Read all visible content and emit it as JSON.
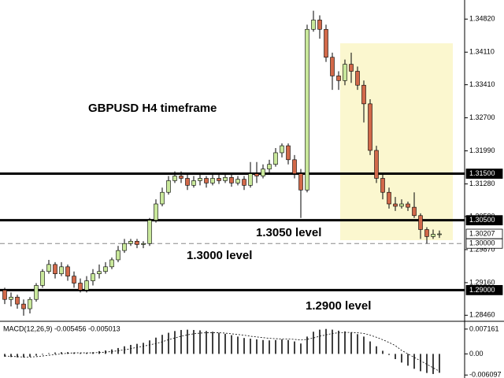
{
  "chart_data": {
    "type": "candlestick",
    "title": "GBPUSD H4 timeframe",
    "up_color": "#c9e89b",
    "down_color": "#d2694a",
    "ylim": [
      1.2833,
      1.3523
    ],
    "yticks": [
      {
        "value": 1.3482,
        "label": "1.34820"
      },
      {
        "value": 1.3411,
        "label": "1.34110"
      },
      {
        "value": 1.3341,
        "label": "1.33410"
      },
      {
        "value": 1.327,
        "label": "1.32700"
      },
      {
        "value": 1.3199,
        "label": "1.31990"
      },
      {
        "value": 1.3128,
        "label": "1.31280"
      },
      {
        "value": 1.3058,
        "label": "1.30580"
      },
      {
        "value": 1.2987,
        "label": "1.29870"
      },
      {
        "value": 1.2916,
        "label": "1.29160"
      },
      {
        "value": 1.2846,
        "label": "1.28460"
      }
    ],
    "levels": [
      {
        "value": 1.315,
        "label": "1.31500",
        "style": "solid"
      },
      {
        "value": 1.305,
        "label": "1.30500",
        "style": "solid"
      },
      {
        "value": 1.3,
        "label": "1.30000",
        "style": "dashed"
      },
      {
        "value": 1.29,
        "label": "1.29000",
        "style": "solid"
      }
    ],
    "annotations": [
      "1.3050 level",
      "1.3000 level",
      "1.2900 level"
    ],
    "current_price": {
      "value": 1.30207,
      "label": "1.30207"
    },
    "ohlc": [
      [
        1.29,
        1.2905,
        1.287,
        1.288
      ],
      [
        1.288,
        1.2895,
        1.2865,
        1.2885
      ],
      [
        1.2885,
        1.289,
        1.286,
        1.287
      ],
      [
        1.287,
        1.288,
        1.2845,
        1.286
      ],
      [
        1.286,
        1.2885,
        1.285,
        1.288
      ],
      [
        1.288,
        1.2915,
        1.2875,
        1.291
      ],
      [
        1.291,
        1.2945,
        1.2905,
        1.294
      ],
      [
        1.294,
        1.2965,
        1.2935,
        1.2955
      ],
      [
        1.2955,
        1.296,
        1.2925,
        1.2935
      ],
      [
        1.2935,
        1.296,
        1.293,
        1.295
      ],
      [
        1.295,
        1.2955,
        1.292,
        1.293
      ],
      [
        1.293,
        1.294,
        1.2905,
        1.2915
      ],
      [
        1.2915,
        1.2925,
        1.2895,
        1.29
      ],
      [
        1.29,
        1.293,
        1.2895,
        1.292
      ],
      [
        1.292,
        1.2945,
        1.291,
        1.2935
      ],
      [
        1.2935,
        1.2955,
        1.2925,
        1.294
      ],
      [
        1.294,
        1.296,
        1.2935,
        1.295
      ],
      [
        1.295,
        1.297,
        1.2945,
        1.2965
      ],
      [
        1.2965,
        1.2995,
        1.296,
        1.2985
      ],
      [
        1.2985,
        1.301,
        1.298,
        1.3
      ],
      [
        1.3,
        1.301,
        1.2995,
        1.3005
      ],
      [
        1.3005,
        1.301,
        1.299,
        1.2998
      ],
      [
        1.2998,
        1.3005,
        1.299,
        1.3
      ],
      [
        1.3,
        1.3055,
        1.2995,
        1.305
      ],
      [
        1.305,
        1.3095,
        1.3045,
        1.3085
      ],
      [
        1.3085,
        1.312,
        1.308,
        1.311
      ],
      [
        1.311,
        1.3145,
        1.3105,
        1.3135
      ],
      [
        1.3135,
        1.3155,
        1.313,
        1.3145
      ],
      [
        1.3145,
        1.3155,
        1.313,
        1.314
      ],
      [
        1.314,
        1.315,
        1.3115,
        1.3125
      ],
      [
        1.3125,
        1.3145,
        1.312,
        1.3135
      ],
      [
        1.3135,
        1.315,
        1.3125,
        1.314
      ],
      [
        1.314,
        1.3145,
        1.312,
        1.313
      ],
      [
        1.313,
        1.3148,
        1.3125,
        1.314
      ],
      [
        1.314,
        1.315,
        1.3128,
        1.3135
      ],
      [
        1.3135,
        1.315,
        1.313,
        1.3142
      ],
      [
        1.3142,
        1.3148,
        1.3122,
        1.313
      ],
      [
        1.313,
        1.3145,
        1.3125,
        1.3138
      ],
      [
        1.3138,
        1.3145,
        1.3115,
        1.3125
      ],
      [
        1.3125,
        1.3175,
        1.312,
        1.315
      ],
      [
        1.315,
        1.3175,
        1.313,
        1.3145
      ],
      [
        1.3145,
        1.317,
        1.314,
        1.316
      ],
      [
        1.316,
        1.318,
        1.315,
        1.317
      ],
      [
        1.317,
        1.3205,
        1.3165,
        1.3195
      ],
      [
        1.3195,
        1.3215,
        1.3185,
        1.321
      ],
      [
        1.321,
        1.3215,
        1.317,
        1.318
      ],
      [
        1.318,
        1.319,
        1.314,
        1.315
      ],
      [
        1.315,
        1.316,
        1.3055,
        1.3115
      ],
      [
        1.3115,
        1.347,
        1.311,
        1.346
      ],
      [
        1.346,
        1.35,
        1.3455,
        1.348
      ],
      [
        1.348,
        1.349,
        1.344,
        1.346
      ],
      [
        1.346,
        1.347,
        1.339,
        1.34
      ],
      [
        1.34,
        1.341,
        1.333,
        1.336
      ],
      [
        1.336,
        1.337,
        1.333,
        1.335
      ],
      [
        1.335,
        1.3395,
        1.334,
        1.3385
      ],
      [
        1.3385,
        1.341,
        1.3345,
        1.337
      ],
      [
        1.337,
        1.338,
        1.333,
        1.334
      ],
      [
        1.334,
        1.335,
        1.326,
        1.33
      ],
      [
        1.33,
        1.331,
        1.319,
        1.32
      ],
      [
        1.32,
        1.321,
        1.313,
        1.314
      ],
      [
        1.314,
        1.315,
        1.3095,
        1.311
      ],
      [
        1.311,
        1.312,
        1.3075,
        1.3085
      ],
      [
        1.3085,
        1.31,
        1.307,
        1.308
      ],
      [
        1.308,
        1.3095,
        1.3075,
        1.3085
      ],
      [
        1.3085,
        1.309,
        1.307,
        1.3078
      ],
      [
        1.3078,
        1.311,
        1.3055,
        1.306
      ],
      [
        1.306,
        1.3065,
        1.301,
        1.303
      ],
      [
        1.303,
        1.3035,
        1.3,
        1.3015
      ],
      [
        1.3015,
        1.303,
        1.301,
        1.302
      ],
      [
        1.302,
        1.3028,
        1.3012,
        1.30207
      ]
    ],
    "macd": {
      "title": "MACD(12,26,9) -0.005456 -0.005013",
      "y2lim": [
        -0.0065,
        0.0085
      ],
      "y2ticks": [
        0.007161,
        {
          "value": 0,
          "label": "0.00"
        },
        -0.006097
      ],
      "histogram": [
        -0.0008,
        -0.0009,
        -0.001,
        -0.001,
        -0.0008,
        -0.0005,
        -0.0002,
        0.0002,
        0.0004,
        0.0005,
        0.0005,
        0.0004,
        0.0002,
        0.0003,
        0.0005,
        0.0008,
        0.001,
        0.0013,
        0.0017,
        0.0022,
        0.0026,
        0.0029,
        0.0032,
        0.0039,
        0.0047,
        0.0055,
        0.0061,
        0.0066,
        0.0069,
        0.007,
        0.0069,
        0.0068,
        0.0066,
        0.0064,
        0.0061,
        0.0058,
        0.0054,
        0.005,
        0.0046,
        0.0044,
        0.0042,
        0.004,
        0.0039,
        0.004,
        0.0042,
        0.004,
        0.0036,
        0.003,
        0.005,
        0.0064,
        0.007,
        0.0072,
        0.007,
        0.0067,
        0.0065,
        0.0062,
        0.0057,
        0.005,
        0.0036,
        0.0022,
        0.0009,
        -0.0003,
        -0.0015,
        -0.0025,
        -0.0034,
        -0.0043,
        -0.005,
        -0.0055,
        -0.0058,
        -0.005456
      ],
      "signal": [
        -0.0006,
        -0.0007,
        -0.0008,
        -0.0009,
        -0.0009,
        -0.0008,
        -0.0006,
        -0.0004,
        -0.0002,
        0,
        0.0002,
        0.0003,
        0.0003,
        0.0003,
        0.0003,
        0.0004,
        0.0005,
        0.0007,
        0.0009,
        0.0012,
        0.0015,
        0.0019,
        0.0022,
        0.0026,
        0.003,
        0.0035,
        0.0041,
        0.0046,
        0.0051,
        0.0055,
        0.0058,
        0.006,
        0.0061,
        0.0061,
        0.0061,
        0.006,
        0.0058,
        0.0056,
        0.0054,
        0.0051,
        0.0049,
        0.0047,
        0.0045,
        0.0044,
        0.0043,
        0.0043,
        0.0042,
        0.004,
        0.0042,
        0.0046,
        0.0051,
        0.0055,
        0.0059,
        0.0061,
        0.0062,
        0.0062,
        0.0061,
        0.0059,
        0.0054,
        0.0048,
        0.0041,
        0.0033,
        0.0024,
        0.001,
        0,
        -0.001,
        -0.002,
        -0.003,
        -0.004,
        -0.005013
      ]
    }
  }
}
